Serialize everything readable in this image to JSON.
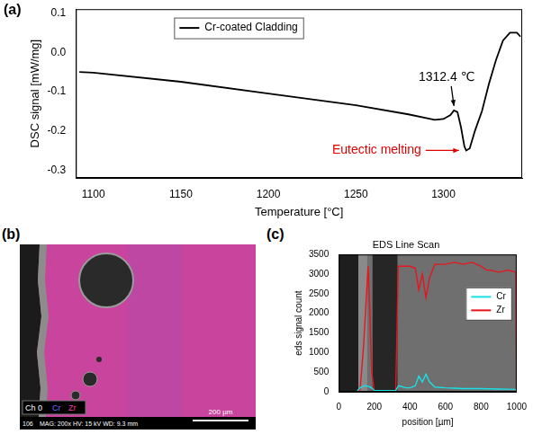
{
  "chart_data": [
    {
      "type": "line",
      "panel_label": "(a)",
      "x_label": "Temperature [°C]",
      "y_label": "DSC signal [mW/mg]",
      "x": [
        1092,
        1100,
        1150,
        1200,
        1250,
        1280,
        1295,
        1300,
        1304,
        1306,
        1308,
        1310,
        1312,
        1313,
        1315,
        1318,
        1322,
        1326,
        1330,
        1334,
        1338,
        1342,
        1344
      ],
      "series": [
        {
          "name": "Cr-coated Cladding",
          "color": "#000000",
          "values": [
            -0.05,
            -0.052,
            -0.075,
            -0.105,
            -0.135,
            -0.158,
            -0.172,
            -0.17,
            -0.16,
            -0.148,
            -0.152,
            -0.19,
            -0.24,
            -0.25,
            -0.245,
            -0.2,
            -0.15,
            -0.08,
            -0.02,
            0.03,
            0.05,
            0.05,
            0.04
          ]
        }
      ],
      "xlim": [
        1090,
        1345
      ],
      "xticks": [
        1100,
        1150,
        1200,
        1250,
        1300
      ],
      "ylim": [
        -0.32,
        0.11
      ],
      "yticks": [
        -0.3,
        -0.2,
        -0.1,
        {
          "value": 0,
          "label": "0.0"
        },
        0.1
      ],
      "grid": false,
      "legend": "upper left",
      "annotations": [
        {
          "text": "1312.4 ℃",
          "x": 1306,
          "y": -0.148,
          "color": "#000000"
        },
        {
          "text": "Eutectic melting",
          "x": 1313,
          "y": -0.25,
          "color": "#e00000"
        }
      ]
    },
    {
      "type": "line",
      "panel_label": "(c)",
      "title": "EDS Line Scan",
      "x_label": "position [µm]",
      "y_label": "eds signal count",
      "x": [
        0,
        100,
        120,
        140,
        150,
        165,
        175,
        185,
        200,
        300,
        320,
        335,
        340,
        380,
        400,
        430,
        450,
        470,
        490,
        510,
        540,
        600,
        650,
        700,
        750,
        800,
        830,
        850,
        900,
        950,
        995,
        1000
      ],
      "series": [
        {
          "name": "Cr",
          "color": "#19e0e6",
          "values": [
            0,
            0,
            100,
            150,
            150,
            140,
            120,
            100,
            30,
            30,
            30,
            150,
            150,
            100,
            100,
            150,
            400,
            250,
            450,
            250,
            120,
            100,
            90,
            80,
            80,
            80,
            75,
            75,
            70,
            65,
            60,
            0
          ]
        },
        {
          "name": "Zr",
          "color": "#e8141e",
          "values": [
            0,
            0,
            50,
            1200,
            2000,
            3200,
            2000,
            500,
            0,
            0,
            0,
            3200,
            3200,
            3200,
            3200,
            3150,
            2600,
            3000,
            2400,
            2900,
            3250,
            3250,
            3300,
            3250,
            3300,
            3200,
            3100,
            3100,
            3050,
            3100,
            3050,
            0
          ]
        }
      ],
      "xlim": [
        0,
        1000
      ],
      "xticks": [
        0,
        200,
        400,
        600,
        800,
        1000
      ],
      "ylim": [
        0,
        3500
      ],
      "yticks": [
        0,
        500,
        1000,
        1500,
        2000,
        2500,
        3000,
        3500
      ],
      "grid": false,
      "legend": "upper right"
    }
  ],
  "image_panel": {
    "panel_label": "(b)",
    "legend_items": [
      {
        "text": "Ch 0",
        "color": "#ffffff"
      },
      {
        "text": "Cr",
        "color": "#7a6bff"
      },
      {
        "text": "Zr",
        "color": "#ff3aa0"
      }
    ],
    "id_text": "106",
    "info_text": "MAG: 200x  HV: 15 kV  WD: 9.3 mm",
    "scale_bar": "200 µm"
  }
}
